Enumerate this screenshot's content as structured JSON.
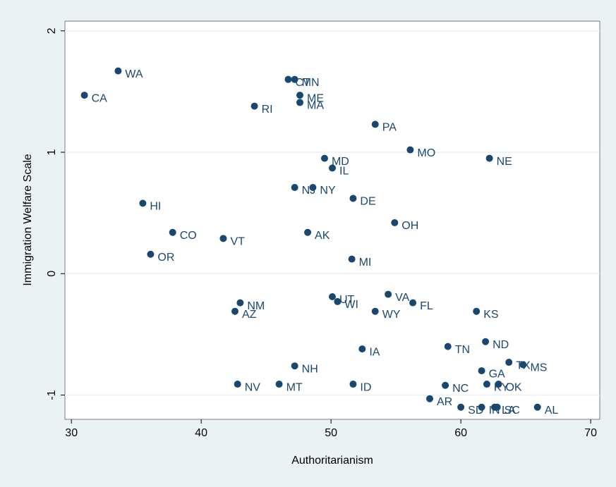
{
  "chart_data": {
    "type": "scatter",
    "x_label": "Authoritarianism",
    "y_label": "Immigration Welfare Scale",
    "labels": [
      "WA",
      "CA",
      "CT",
      "MN",
      "ME",
      "MA",
      "RI",
      "PA",
      "MO",
      "NE",
      "MD",
      "IL",
      "NJ",
      "NY",
      "DE",
      "HI",
      "CO",
      "AK",
      "VT",
      "OH",
      "OR",
      "MI",
      "UT",
      "WI",
      "VA",
      "FL",
      "NM",
      "AZ",
      "WY",
      "KS",
      "ND",
      "TN",
      "IA",
      "TX",
      "MS",
      "NH",
      "GA",
      "KY",
      "OK",
      "NV",
      "MT",
      "ID",
      "NC",
      "AR",
      "SD",
      "IN",
      "LA",
      "SC",
      "AL"
    ],
    "x": [
      33.6,
      31.0,
      46.7,
      47.2,
      47.6,
      47.6,
      44.1,
      53.4,
      56.1,
      62.2,
      49.5,
      50.1,
      47.2,
      48.6,
      51.7,
      35.5,
      37.8,
      48.2,
      41.7,
      54.9,
      36.1,
      51.6,
      50.1,
      50.5,
      54.4,
      56.3,
      43.0,
      42.6,
      53.4,
      61.2,
      61.9,
      59.0,
      52.4,
      63.7,
      64.8,
      47.2,
      61.6,
      62.0,
      62.9,
      42.8,
      46.0,
      51.7,
      58.8,
      57.6,
      60.0,
      61.6,
      62.6,
      62.8,
      65.9
    ],
    "values": [
      1.67,
      1.47,
      1.6,
      1.6,
      1.47,
      1.41,
      1.38,
      1.23,
      1.02,
      0.95,
      0.95,
      0.87,
      0.71,
      0.71,
      0.62,
      0.58,
      0.34,
      0.34,
      0.29,
      0.42,
      0.16,
      0.12,
      -0.19,
      -0.23,
      -0.17,
      -0.24,
      -0.24,
      -0.31,
      -0.31,
      -0.31,
      -0.56,
      -0.6,
      -0.62,
      -0.73,
      -0.75,
      -0.76,
      -0.8,
      -0.91,
      -0.91,
      -0.91,
      -0.91,
      -0.91,
      -0.92,
      -1.03,
      -1.1,
      -1.1,
      -1.1,
      -1.1,
      -1.1
    ],
    "color": "#1a476f",
    "xlim": [
      29.5,
      70.7
    ],
    "ylim": [
      -1.2,
      2.08
    ],
    "xticks": [
      30,
      40,
      50,
      60,
      70
    ],
    "yticks": [
      -1,
      0,
      1,
      2
    ],
    "grid": true
  }
}
